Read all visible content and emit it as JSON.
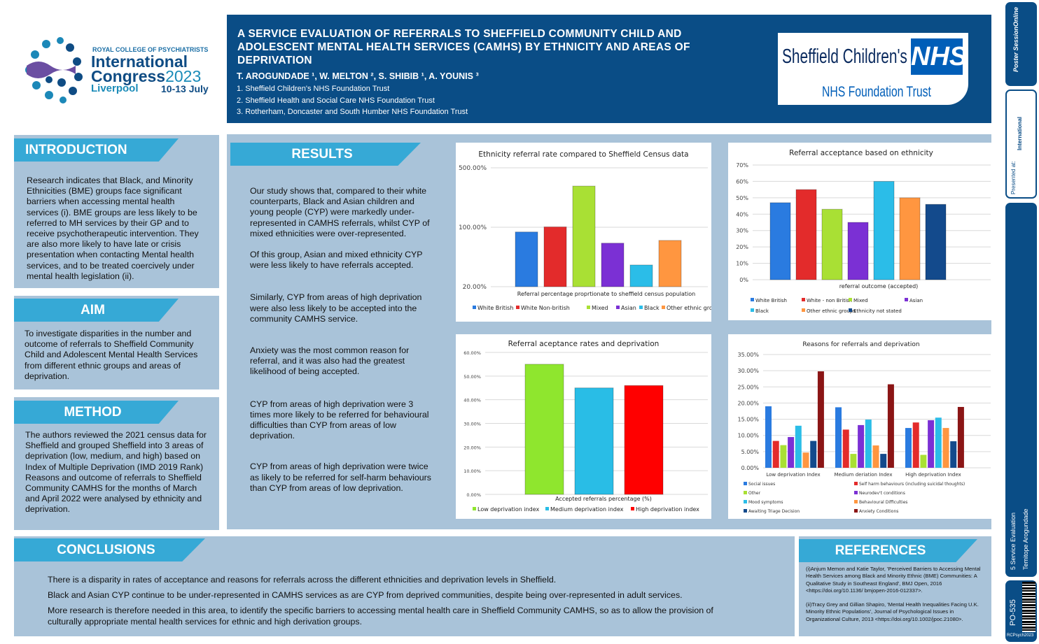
{
  "logo": {
    "org": "ROYAL COLLEGE OF PSYCHIATRISTS",
    "line1": "International",
    "line2": "Congress",
    "year": "2023",
    "city": "Liverpool",
    "dates": "10-13 July"
  },
  "header": {
    "title": "A SERVICE EVALUATION OF REFERRALS TO SHEFFIELD COMMUNITY CHILD AND ADOLESCENT MENTAL HEALTH SERVICES (CAMHS) BY ETHNICITY AND AREAS OF DEPRIVATION",
    "authors": "T. AROGUNDADE ¹, W. MELTON ², S. SHIBIB ¹, A. YOUNIS ³",
    "affiliations": [
      "1. Sheffield Children's NHS Foundation Trust",
      "2. Sheffield Health and Social Care NHS Foundation Trust",
      "3. Rotherham, Doncaster and South Humber NHS Foundation Trust"
    ],
    "nhs_logo": {
      "name": "Sheffield Children's",
      "badge": "NHS",
      "sub": "NHS Foundation Trust"
    }
  },
  "introduction": {
    "heading": "INTRODUCTION",
    "text": "Research indicates that Black, and Minority Ethnicities (BME) groups face significant barriers when accessing mental health services (i). BME groups are less likely to be referred to MH services by their GP and to receive psychotherapeutic intervention. They are also more likely to have late or crisis presentation when contacting Mental health services, and to be treated coercively under mental health legislation (ii)."
  },
  "aim": {
    "heading": "AIM",
    "text": "To investigate disparities in the number and outcome of referrals to Sheffield Community Child and Adolescent Mental Health Services from different ethnic groups and areas of deprivation."
  },
  "method": {
    "heading": "METHOD",
    "paragraphs": [
      "The authors reviewed the 2021 census data for Sheffield and grouped Sheffield into 3 areas of deprivation (low, medium, and high) based on Index of Multiple Deprivation (IMD 2019 Rank)",
      "Reasons and outcome of referrals to Sheffield Community CAMHS for the months of March and April 2022 were analysed by ethnicity and deprivation."
    ]
  },
  "results": {
    "heading": "RESULTS",
    "paragraphs": [
      "Our study shows that, compared to their white counterparts, Black and Asian children and young people (CYP) were markedly under-represented in CAMHS referrals, whilst CYP of mixed ethnicities were over-represented.",
      "Of this group, Asian and mixed ethnicity CYP were less likely to have referrals accepted.",
      "Similarly, CYP from areas of high deprivation were also less likely to be accepted into the community CAMHS service.",
      "Anxiety was the most common reason for referral, and it was also had the greatest likelihood of being accepted.",
      "CYP from areas of high deprivation were 3 times more likely to be referred for behavioural difficulties than CYP from areas of low deprivation.",
      "CYP from areas of high deprivation were twice as likely to be referred for self-harm behaviours than CYP from areas of low deprivation."
    ]
  },
  "conclusions": {
    "heading": "CONCLUSIONS",
    "paragraphs": [
      "There is a disparity in rates of acceptance and reasons for referrals across the different ethnicities and deprivation levels in Sheffield.",
      "Black and Asian CYP continue to be under-represented in CAMHS services as are CYP from deprived communities, despite being over-represented in adult services.",
      "More research is therefore needed in this area, to identify the specific barriers to accessing mental health care in Sheffield Community CAMHS, so as to allow  the provision of culturally appropriate mental health services for ethnic and high derivation groups."
    ]
  },
  "references": {
    "heading": "REFERENCES",
    "items": [
      "(i)Anjum Memon and Katie Taylor, 'Perceived Barriers to Accessing Mental Health Services among Black and Minority Ethnic (BME) Communities: A Qualitative Study in Southeast England', BMJ Open, 2016 <https://doi.org/10.1136/ bmjopen-2016-012337>.",
      "(ii)Tracy Grey and Gillian Shapiro, 'Mental Health Inequalities Facing U.K. Minority Ethnic Populations', Journal of Psychological Issues in Organizational Culture, 2013 <https://doi.org/10.1002/jpoc.21080>."
    ]
  },
  "sidebar": {
    "brand": "Poster SessionOnline",
    "presented": "Presented at:",
    "poster_title": "5 Service Evaluation",
    "author": "Temitope Arogundade",
    "code": "PO-535",
    "event": "RCPsych2023"
  },
  "chart_data": [
    {
      "type": "bar",
      "title": "Ethnicity referral rate compared to Sheffield Census data",
      "xlabel": "Referral percentage proprtionate to sheffield census population",
      "yscale": "log",
      "ylim": [
        20,
        500
      ],
      "yticks": [
        "20.00%",
        "100.00%",
        "500.00%"
      ],
      "ytick_values": [
        20,
        100,
        500
      ],
      "grid": true,
      "legend": "bottom",
      "series": [
        {
          "name": "White British",
          "value": 88,
          "color": "#2a7be0"
        },
        {
          "name": "White Non-british",
          "value": 101,
          "color": "#e32b2b"
        },
        {
          "name": "Mixed",
          "value": 305,
          "color": "#a9e034"
        },
        {
          "name": "Asian",
          "value": 65,
          "color": "#7b30d4"
        },
        {
          "name": "Black",
          "value": 36,
          "color": "#2bbde8"
        },
        {
          "name": "Other ethnic groups",
          "value": 70,
          "color": "#ff9640"
        }
      ]
    },
    {
      "type": "bar",
      "title": "Referral acceptance  based on ethnicity",
      "xlabel": "referral outcome (accepted)",
      "ylim": [
        0,
        70
      ],
      "yticks": [
        "0%",
        "10%",
        "20%",
        "30%",
        "40%",
        "50%",
        "60%",
        "70%"
      ],
      "ytick_values": [
        0,
        10,
        20,
        30,
        40,
        50,
        60,
        70
      ],
      "grid": true,
      "legend": "bottom",
      "series": [
        {
          "name": "White British",
          "value": 47,
          "color": "#2a7be0"
        },
        {
          "name": "White - non British",
          "value": 55,
          "color": "#e32b2b"
        },
        {
          "name": "Mixed",
          "value": 43,
          "color": "#a9e034"
        },
        {
          "name": "Asian",
          "value": 35,
          "color": "#7b30d4"
        },
        {
          "name": "Black",
          "value": 60,
          "color": "#2bbde8"
        },
        {
          "name": "Other ethnic groups",
          "value": 50,
          "color": "#ff9640"
        },
        {
          "name": "Ethnicity not stated",
          "value": 46,
          "color": "#134a8c"
        }
      ]
    },
    {
      "type": "bar",
      "title": "Referral aceptance rates and deprivation",
      "xlabel": "Accepted referrals percentage (%)",
      "ylim": [
        0,
        60
      ],
      "yticks": [
        "0.00%",
        "10.00%",
        "20.00%",
        "30.00%",
        "40.00%",
        "50.00%",
        "60.00%"
      ],
      "ytick_values": [
        0,
        10,
        20,
        30,
        40,
        50,
        60
      ],
      "grid": true,
      "legend": "bottom",
      "series": [
        {
          "name": "Low deprivation index",
          "value": 55,
          "color": "#8fe62e"
        },
        {
          "name": "Medium deprivation index",
          "value": 45,
          "color": "#29bde6"
        },
        {
          "name": "High deprivation index",
          "value": 46,
          "color": "#ff0000"
        }
      ]
    },
    {
      "type": "bar",
      "title": "Reasons for referrals and deprivation",
      "categories": [
        "Low deprivation Index",
        "Medium deriation Index",
        "High deprivation Index"
      ],
      "ylim": [
        0,
        35
      ],
      "yticks": [
        "0.00%",
        "5.00%",
        "10.00%",
        "15.00%",
        "20.00%",
        "25.00%",
        "30.00%",
        "35.00%"
      ],
      "ytick_values": [
        0,
        5,
        10,
        15,
        20,
        25,
        30,
        35
      ],
      "grid": true,
      "legend": "bottom",
      "series": [
        {
          "name": "Social issues",
          "values": [
            19,
            18.7,
            12.3
          ],
          "color": "#2a7be0"
        },
        {
          "name": "Self harm behaviours (including suicidal thoughts)",
          "values": [
            8.3,
            11.8,
            14
          ],
          "color": "#e32b2b"
        },
        {
          "name": "Other",
          "values": [
            7,
            4.3,
            4
          ],
          "color": "#a9e034"
        },
        {
          "name": "Neurodev't conditions",
          "values": [
            9.5,
            13.2,
            14.7
          ],
          "color": "#7b30d4"
        },
        {
          "name": "Mood symptoms",
          "values": [
            13,
            14.9,
            15.5
          ],
          "color": "#2bbde8"
        },
        {
          "name": "Behavioural Difficulties",
          "values": [
            4.7,
            6.9,
            12.3
          ],
          "color": "#ff9640"
        },
        {
          "name": "Awaiting Triage Decision",
          "values": [
            8.3,
            4.3,
            8.2
          ],
          "color": "#134a8c"
        },
        {
          "name": "Anxiety Conditions",
          "values": [
            29.8,
            25.8,
            18.8
          ],
          "color": "#8b1515"
        }
      ]
    }
  ]
}
